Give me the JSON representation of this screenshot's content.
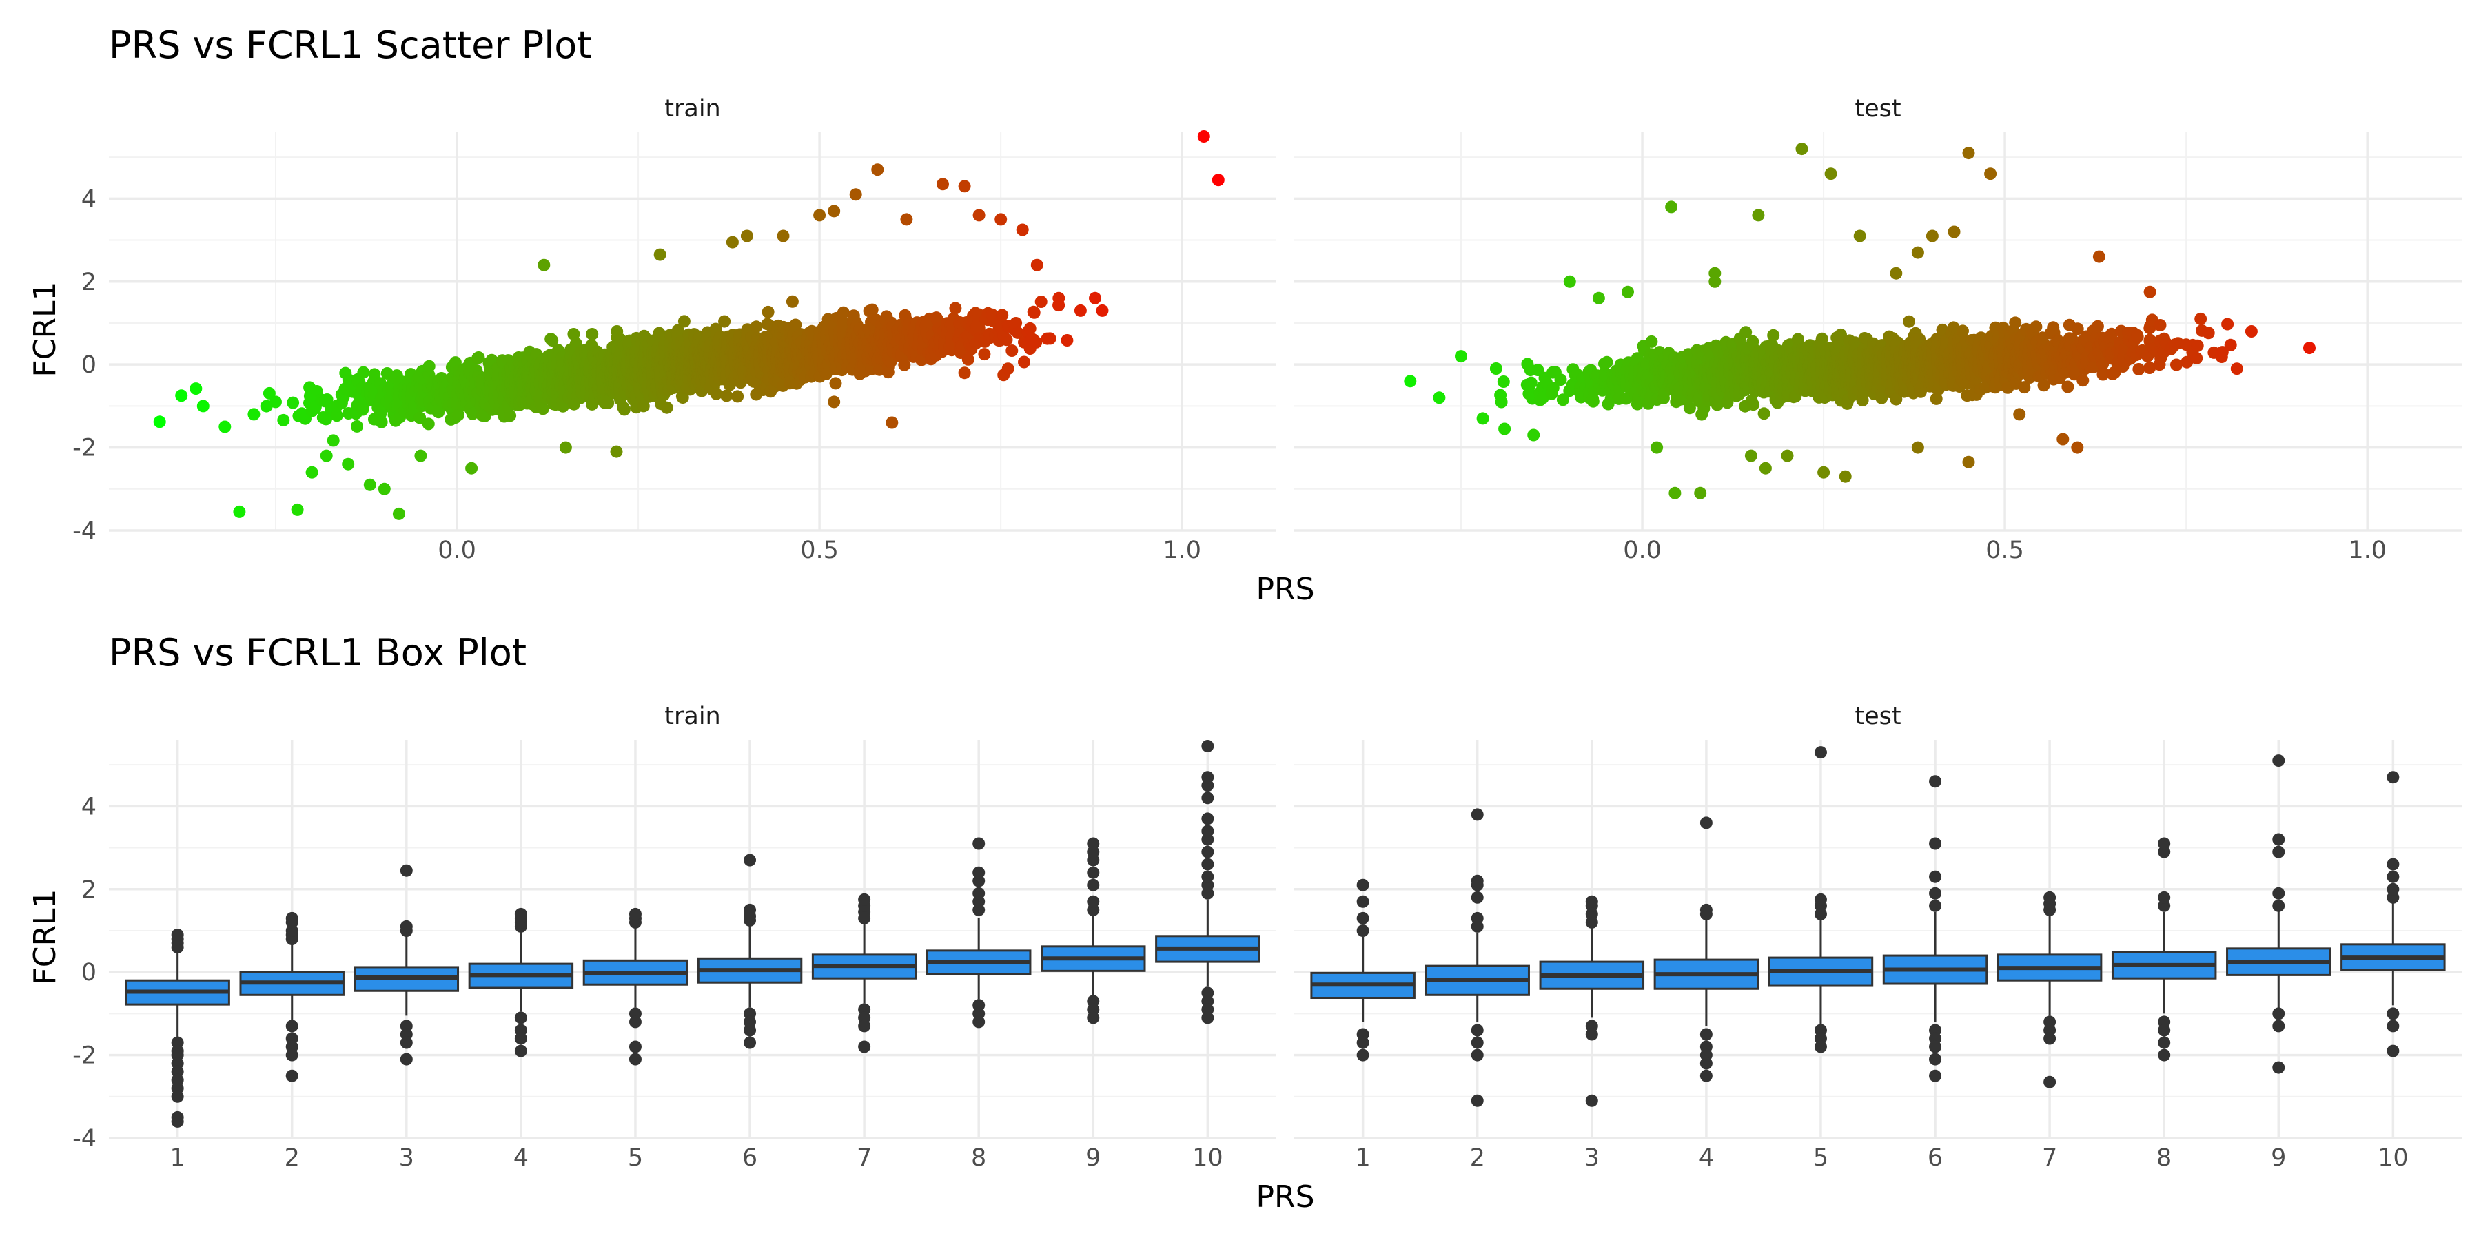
{
  "chart_data": [
    {
      "type": "scatter",
      "title": "PRS vs FCRL1 Scatter Plot",
      "xlabel": "PRS",
      "ylabel": "FCRL1",
      "facets": [
        "train",
        "test"
      ],
      "xlim": [
        -0.48,
        1.13
      ],
      "ylim": [
        -4.0,
        5.6
      ],
      "x_ticks": [
        0.0,
        0.5,
        1.0
      ],
      "x_tick_labels": [
        "0.0",
        "0.5",
        "1.0"
      ],
      "y_ticks": [
        -4,
        -2,
        0,
        2,
        4
      ],
      "y_tick_labels": [
        "-4",
        "-2",
        "0",
        "2",
        "4"
      ],
      "grid": true,
      "legend": "none",
      "color_scale": {
        "low": "#00ff00",
        "high": "#ff0000",
        "mapped_to": "PRS"
      },
      "cloud": {
        "train": {
          "x_range": [
            -0.3,
            0.9
          ],
          "intercept": -0.6,
          "slope": 1.9,
          "spread": 0.55,
          "n": 3500
        },
        "test": {
          "x_range": [
            -0.25,
            0.85
          ],
          "intercept": -0.35,
          "slope": 1.0,
          "spread": 0.55,
          "n": 2600
        }
      },
      "series": [
        {
          "name": "train",
          "points": [
            [
              -0.41,
              -1.38
            ],
            [
              -0.38,
              -0.75
            ],
            [
              -0.36,
              -0.58
            ],
            [
              -0.35,
              -1.0
            ],
            [
              -0.32,
              -1.5
            ],
            [
              -0.3,
              -3.55
            ],
            [
              -0.28,
              -1.2
            ],
            [
              -0.25,
              -0.9
            ],
            [
              -0.22,
              -3.5
            ],
            [
              -0.2,
              -2.6
            ],
            [
              -0.18,
              -2.2
            ],
            [
              -0.15,
              -2.4
            ],
            [
              -0.12,
              -2.9
            ],
            [
              -0.1,
              -3.0
            ],
            [
              -0.08,
              -3.6
            ],
            [
              -0.05,
              -2.2
            ],
            [
              0.02,
              -2.5
            ],
            [
              0.12,
              2.4
            ],
            [
              0.15,
              -2.0
            ],
            [
              0.22,
              -2.1
            ],
            [
              0.28,
              2.65
            ],
            [
              0.38,
              2.95
            ],
            [
              0.4,
              3.1
            ],
            [
              0.45,
              3.1
            ],
            [
              0.5,
              3.6
            ],
            [
              0.52,
              3.7
            ],
            [
              0.55,
              4.1
            ],
            [
              0.58,
              4.7
            ],
            [
              0.62,
              3.5
            ],
            [
              0.67,
              4.35
            ],
            [
              0.7,
              4.3
            ],
            [
              0.72,
              3.6
            ],
            [
              0.75,
              3.5
            ],
            [
              0.78,
              3.25
            ],
            [
              0.8,
              2.4
            ],
            [
              0.83,
              1.6
            ],
            [
              0.86,
              1.3
            ],
            [
              0.88,
              1.6
            ],
            [
              0.89,
              1.3
            ],
            [
              0.7,
              -0.2
            ],
            [
              0.76,
              -0.1
            ],
            [
              0.52,
              -0.9
            ],
            [
              0.6,
              -1.4
            ],
            [
              1.03,
              5.5
            ],
            [
              1.05,
              4.45
            ]
          ]
        },
        {
          "name": "test",
          "points": [
            [
              -0.32,
              -0.4
            ],
            [
              -0.28,
              -0.8
            ],
            [
              -0.25,
              0.2
            ],
            [
              -0.22,
              -1.3
            ],
            [
              -0.19,
              -1.55
            ],
            [
              -0.15,
              -1.7
            ],
            [
              -0.1,
              2.0
            ],
            [
              -0.06,
              1.6
            ],
            [
              -0.02,
              1.75
            ],
            [
              0.02,
              -2.0
            ],
            [
              0.04,
              3.8
            ],
            [
              0.045,
              -3.1
            ],
            [
              0.08,
              -3.1
            ],
            [
              0.1,
              2.0
            ],
            [
              0.1,
              2.2
            ],
            [
              0.16,
              3.6
            ],
            [
              0.15,
              -2.2
            ],
            [
              0.17,
              -2.5
            ],
            [
              0.2,
              -2.2
            ],
            [
              0.22,
              5.2
            ],
            [
              0.26,
              4.6
            ],
            [
              0.25,
              -2.6
            ],
            [
              0.28,
              -2.7
            ],
            [
              0.3,
              3.1
            ],
            [
              0.35,
              2.2
            ],
            [
              0.38,
              2.7
            ],
            [
              0.38,
              -2.0
            ],
            [
              0.4,
              3.1
            ],
            [
              0.43,
              3.2
            ],
            [
              0.45,
              5.1
            ],
            [
              0.45,
              -2.35
            ],
            [
              0.48,
              4.6
            ],
            [
              0.52,
              -1.2
            ],
            [
              0.58,
              -1.8
            ],
            [
              0.6,
              -2.0
            ],
            [
              0.63,
              2.6
            ],
            [
              0.7,
              1.75
            ],
            [
              0.77,
              1.1
            ],
            [
              0.8,
              0.3
            ],
            [
              0.82,
              -0.1
            ],
            [
              0.84,
              0.8
            ],
            [
              0.92,
              0.4
            ]
          ]
        }
      ]
    },
    {
      "type": "box",
      "title": "PRS vs FCRL1 Box Plot",
      "xlabel": "PRS",
      "ylabel": "FCRL1",
      "facets": [
        "train",
        "test"
      ],
      "categories": [
        "1",
        "2",
        "3",
        "4",
        "5",
        "6",
        "7",
        "8",
        "9",
        "10"
      ],
      "ylim": [
        -4.0,
        5.6
      ],
      "y_ticks": [
        -4,
        -2,
        0,
        2,
        4
      ],
      "y_tick_labels": [
        "-4",
        "-2",
        "0",
        "2",
        "4"
      ],
      "grid": true,
      "box_fill": "#2b8ee8",
      "series": [
        {
          "name": "train",
          "boxes": [
            {
              "min": -1.55,
              "q1": -0.78,
              "median": -0.47,
              "q3": -0.2,
              "max": 0.55,
              "outliers": [
                -1.7,
                -1.9,
                -2.0,
                -2.2,
                -2.4,
                -2.6,
                -2.8,
                -3.0,
                -3.5,
                -3.6,
                0.6,
                0.7,
                0.8,
                0.9
              ]
            },
            {
              "min": -1.15,
              "q1": -0.55,
              "median": -0.25,
              "q3": 0.0,
              "max": 0.72,
              "outliers": [
                -1.3,
                -1.6,
                -1.8,
                -2.0,
                -2.5,
                0.8,
                0.9,
                1.0,
                1.2,
                1.3
              ]
            },
            {
              "min": -1.05,
              "q1": -0.45,
              "median": -0.13,
              "q3": 0.12,
              "max": 0.9,
              "outliers": [
                -1.3,
                -1.5,
                -1.7,
                -2.1,
                1.0,
                1.1,
                2.45
              ]
            },
            {
              "min": -0.95,
              "q1": -0.38,
              "median": -0.07,
              "q3": 0.2,
              "max": 1.0,
              "outliers": [
                -1.1,
                -1.4,
                -1.6,
                -1.9,
                1.1,
                1.2,
                1.3,
                1.4
              ]
            },
            {
              "min": -0.85,
              "q1": -0.3,
              "median": -0.02,
              "q3": 0.28,
              "max": 1.1,
              "outliers": [
                -1.0,
                -1.2,
                -1.8,
                -2.1,
                1.2,
                1.3,
                1.4
              ]
            },
            {
              "min": -0.85,
              "q1": -0.25,
              "median": 0.05,
              "q3": 0.33,
              "max": 1.15,
              "outliers": [
                -1.0,
                -1.2,
                -1.4,
                -1.7,
                1.25,
                1.35,
                1.5,
                2.7
              ]
            },
            {
              "min": -0.75,
              "q1": -0.15,
              "median": 0.15,
              "q3": 0.42,
              "max": 1.2,
              "outliers": [
                -0.9,
                -1.1,
                -1.3,
                -1.8,
                1.3,
                1.45,
                1.6,
                1.75
              ]
            },
            {
              "min": -0.65,
              "q1": -0.05,
              "median": 0.25,
              "q3": 0.52,
              "max": 1.3,
              "outliers": [
                -0.8,
                -1.0,
                -1.2,
                1.5,
                1.7,
                1.9,
                2.2,
                2.4,
                3.1
              ]
            },
            {
              "min": -0.55,
              "q1": 0.03,
              "median": 0.33,
              "q3": 0.62,
              "max": 1.4,
              "outliers": [
                -0.7,
                -0.9,
                -1.1,
                1.5,
                1.7,
                2.1,
                2.4,
                2.7,
                2.9,
                3.1
              ]
            },
            {
              "min": -0.35,
              "q1": 0.25,
              "median": 0.57,
              "q3": 0.87,
              "max": 1.75,
              "outliers": [
                -0.5,
                -0.7,
                -0.9,
                -1.1,
                1.9,
                2.1,
                2.3,
                2.6,
                2.9,
                3.2,
                3.4,
                3.7,
                4.2,
                4.5,
                4.7,
                5.45
              ]
            }
          ]
        },
        {
          "name": "test",
          "boxes": [
            {
              "min": -1.2,
              "q1": -0.62,
              "median": -0.3,
              "q3": -0.02,
              "max": 0.85,
              "outliers": [
                -1.5,
                -1.7,
                -2.0,
                1.0,
                1.3,
                1.7,
                2.1
              ]
            },
            {
              "min": -1.2,
              "q1": -0.55,
              "median": -0.18,
              "q3": 0.15,
              "max": 0.95,
              "outliers": [
                -1.4,
                -1.7,
                -2.0,
                -3.1,
                1.1,
                1.3,
                1.8,
                2.1,
                2.2,
                3.8
              ]
            },
            {
              "min": -1.1,
              "q1": -0.4,
              "median": -0.08,
              "q3": 0.25,
              "max": 1.1,
              "outliers": [
                -1.3,
                -1.5,
                -3.1,
                1.2,
                1.4,
                1.6,
                1.7
              ]
            },
            {
              "min": -1.3,
              "q1": -0.4,
              "median": -0.05,
              "q3": 0.3,
              "max": 1.3,
              "outliers": [
                -1.5,
                -1.8,
                -2.0,
                -2.2,
                -2.5,
                1.4,
                1.5,
                3.6
              ]
            },
            {
              "min": -1.25,
              "q1": -0.33,
              "median": 0.02,
              "q3": 0.35,
              "max": 1.3,
              "outliers": [
                -1.4,
                -1.6,
                -1.8,
                1.4,
                1.6,
                1.75,
                5.3
              ]
            },
            {
              "min": -1.2,
              "q1": -0.28,
              "median": 0.06,
              "q3": 0.4,
              "max": 1.45,
              "outliers": [
                -1.4,
                -1.6,
                -1.8,
                -2.1,
                -2.5,
                1.6,
                1.9,
                2.3,
                3.1,
                4.6
              ]
            },
            {
              "min": -1.05,
              "q1": -0.2,
              "median": 0.1,
              "q3": 0.42,
              "max": 1.4,
              "outliers": [
                -1.2,
                -1.4,
                -1.6,
                -2.65,
                1.5,
                1.65,
                1.8
              ]
            },
            {
              "min": -1.0,
              "q1": -0.15,
              "median": 0.17,
              "q3": 0.48,
              "max": 1.45,
              "outliers": [
                -1.2,
                -1.4,
                -1.7,
                -2.0,
                1.6,
                1.8,
                2.9,
                3.1
              ]
            },
            {
              "min": -0.9,
              "q1": -0.07,
              "median": 0.25,
              "q3": 0.57,
              "max": 1.5,
              "outliers": [
                -1.0,
                -1.3,
                -2.3,
                1.6,
                1.9,
                2.9,
                3.2,
                5.1
              ]
            },
            {
              "min": -0.8,
              "q1": 0.05,
              "median": 0.35,
              "q3": 0.67,
              "max": 1.7,
              "outliers": [
                -1.0,
                -1.3,
                -1.9,
                1.8,
                2.0,
                2.3,
                2.6,
                4.7
              ]
            }
          ]
        }
      ]
    }
  ]
}
